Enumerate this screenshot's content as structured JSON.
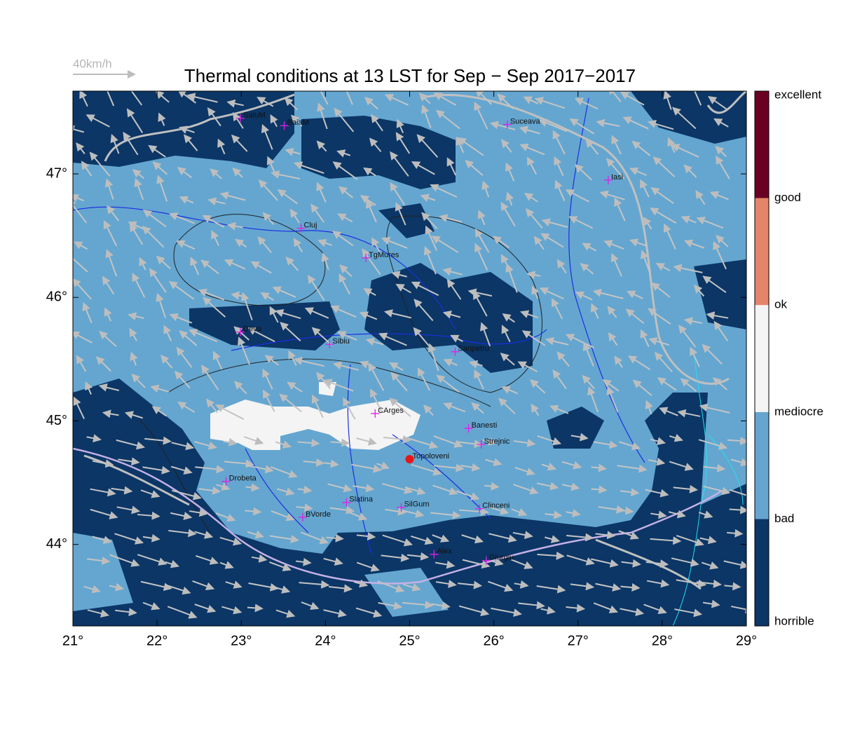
{
  "chart_data": {
    "type": "map",
    "title": "Thermal conditions at 13 LST for Sep − Sep  2017−2017",
    "wind_legend": "40km/h",
    "xlim": [
      21,
      29
    ],
    "ylim": [
      43.34,
      47.67
    ],
    "xticks": [
      {
        "value": 21,
        "label": "21°"
      },
      {
        "value": 22,
        "label": "22°"
      },
      {
        "value": 23,
        "label": "23°"
      },
      {
        "value": 24,
        "label": "24°"
      },
      {
        "value": 25,
        "label": "25°"
      },
      {
        "value": 26,
        "label": "26°"
      },
      {
        "value": 27,
        "label": "27°"
      },
      {
        "value": 28,
        "label": "28°"
      },
      {
        "value": 29,
        "label": "29°"
      }
    ],
    "yticks": [
      {
        "value": 44,
        "label": "44°"
      },
      {
        "value": 45,
        "label": "45°"
      },
      {
        "value": 46,
        "label": "46°"
      },
      {
        "value": 47,
        "label": "47°"
      }
    ],
    "colorbar": {
      "labels": [
        "horrible",
        "bad",
        "mediocre",
        "ok",
        "good",
        "excellent"
      ],
      "colors": [
        "#0b3666",
        "#64a6d0",
        "#f4f4f4",
        "#e4856a",
        "#6a0022"
      ]
    },
    "cities": [
      {
        "name": "SatuM",
        "lon": 22.99,
        "lat": 47.45,
        "marker": "cross"
      },
      {
        "name": "BaiaM",
        "lon": 23.51,
        "lat": 47.39,
        "marker": "cross"
      },
      {
        "name": "Suceava",
        "lon": 26.16,
        "lat": 47.4,
        "marker": "cross"
      },
      {
        "name": "Iasi",
        "lon": 27.36,
        "lat": 46.95,
        "marker": "cross"
      },
      {
        "name": "Cluj",
        "lon": 23.71,
        "lat": 46.56,
        "marker": "cross"
      },
      {
        "name": "TgMures",
        "lon": 24.48,
        "lat": 46.32,
        "marker": "cross"
      },
      {
        "name": "Deva",
        "lon": 22.99,
        "lat": 45.72,
        "marker": "cross"
      },
      {
        "name": "Sibiu",
        "lon": 24.05,
        "lat": 45.62,
        "marker": "cross"
      },
      {
        "name": "Sanpetru",
        "lon": 25.54,
        "lat": 45.56,
        "marker": "cross"
      },
      {
        "name": "CArges",
        "lon": 24.59,
        "lat": 45.06,
        "marker": "cross"
      },
      {
        "name": "Banesti",
        "lon": 25.7,
        "lat": 44.94,
        "marker": "cross"
      },
      {
        "name": "Strejnic",
        "lon": 25.85,
        "lat": 44.81,
        "marker": "cross"
      },
      {
        "name": "Topoloveni",
        "lon": 25.0,
        "lat": 44.69,
        "marker": "dot"
      },
      {
        "name": "Drobeta",
        "lon": 22.82,
        "lat": 44.51,
        "marker": "cross"
      },
      {
        "name": "Slatina",
        "lon": 24.25,
        "lat": 44.34,
        "marker": "cross"
      },
      {
        "name": "SilGum",
        "lon": 24.9,
        "lat": 44.3,
        "marker": "cross"
      },
      {
        "name": "Clinceni",
        "lon": 25.83,
        "lat": 44.29,
        "marker": "cross"
      },
      {
        "name": "BVorde",
        "lon": 23.73,
        "lat": 44.22,
        "marker": "cross"
      },
      {
        "name": "Alex",
        "lon": 25.29,
        "lat": 43.92,
        "marker": "cross"
      },
      {
        "name": "Giurgiu",
        "lon": 25.91,
        "lat": 43.87,
        "marker": "cross"
      }
    ]
  }
}
